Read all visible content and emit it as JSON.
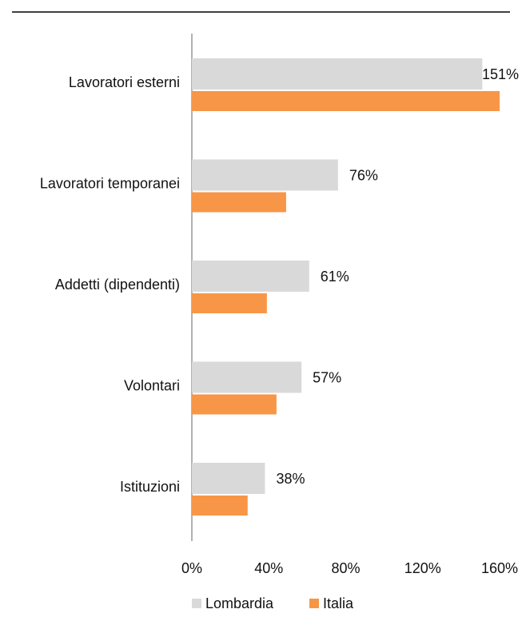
{
  "chart_data": {
    "type": "bar",
    "orientation": "horizontal",
    "categories": [
      "Lavoratori esterni",
      "Lavoratori temporanei",
      "Addetti (dipendenti)",
      "Volontari",
      "Istituzioni"
    ],
    "series": [
      {
        "name": "Lombardia",
        "color": "#d9d9d9",
        "values": [
          151,
          76,
          61,
          57,
          38
        ],
        "value_labels": [
          "151%",
          "76%",
          "61%",
          "57%",
          "38%"
        ]
      },
      {
        "name": "Italia",
        "color": "#f79646",
        "values": [
          160,
          49,
          39,
          44,
          29
        ]
      }
    ],
    "xlim": [
      0,
      160
    ],
    "xticks": [
      {
        "value": 0,
        "label": "0%"
      },
      {
        "value": 40,
        "label": "40%"
      },
      {
        "value": 80,
        "label": "80%"
      },
      {
        "value": 120,
        "label": "120%"
      },
      {
        "value": 160,
        "label": "160%"
      }
    ],
    "legend": "bottom"
  }
}
